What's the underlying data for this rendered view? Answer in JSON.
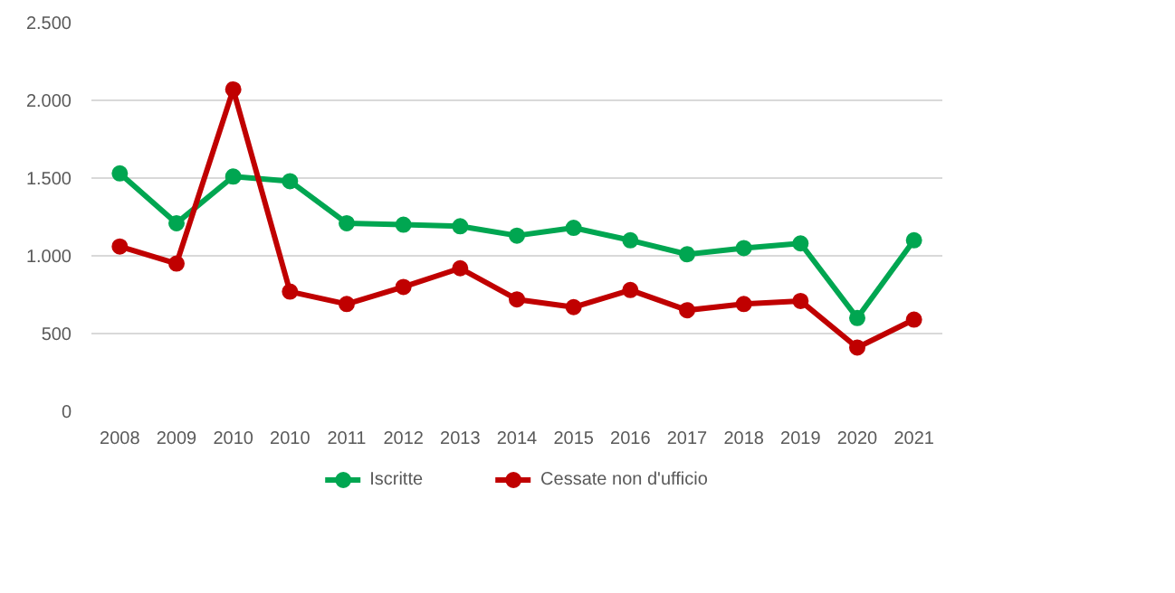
{
  "chart_data": {
    "type": "line",
    "categories": [
      "2008",
      "2009",
      "2010",
      "2010",
      "2011",
      "2012",
      "2013",
      "2014",
      "2015",
      "2016",
      "2017",
      "2018",
      "2019",
      "2020",
      "2021"
    ],
    "series": [
      {
        "name": "Iscritte",
        "color": "#00a651",
        "values": [
          1530,
          1210,
          1510,
          1480,
          1210,
          1200,
          1190,
          1130,
          1180,
          1100,
          1010,
          1050,
          1080,
          600,
          1100
        ]
      },
      {
        "name": "Cessate non d'ufficio",
        "color": "#c00000",
        "values": [
          1060,
          950,
          2070,
          770,
          690,
          800,
          920,
          720,
          670,
          780,
          650,
          690,
          710,
          410,
          590
        ]
      }
    ],
    "ylim": [
      0,
      2500
    ],
    "yticks": [
      0,
      500,
      {
        "value": 1000,
        "label": "1.000"
      },
      {
        "value": 1500,
        "label": "1.500"
      },
      {
        "value": 2000,
        "label": "2.000"
      },
      {
        "value": 2500,
        "label": "2.500"
      }
    ],
    "grid": "y",
    "legend": "bottom",
    "marker": "circle",
    "line_style": "solid"
  }
}
